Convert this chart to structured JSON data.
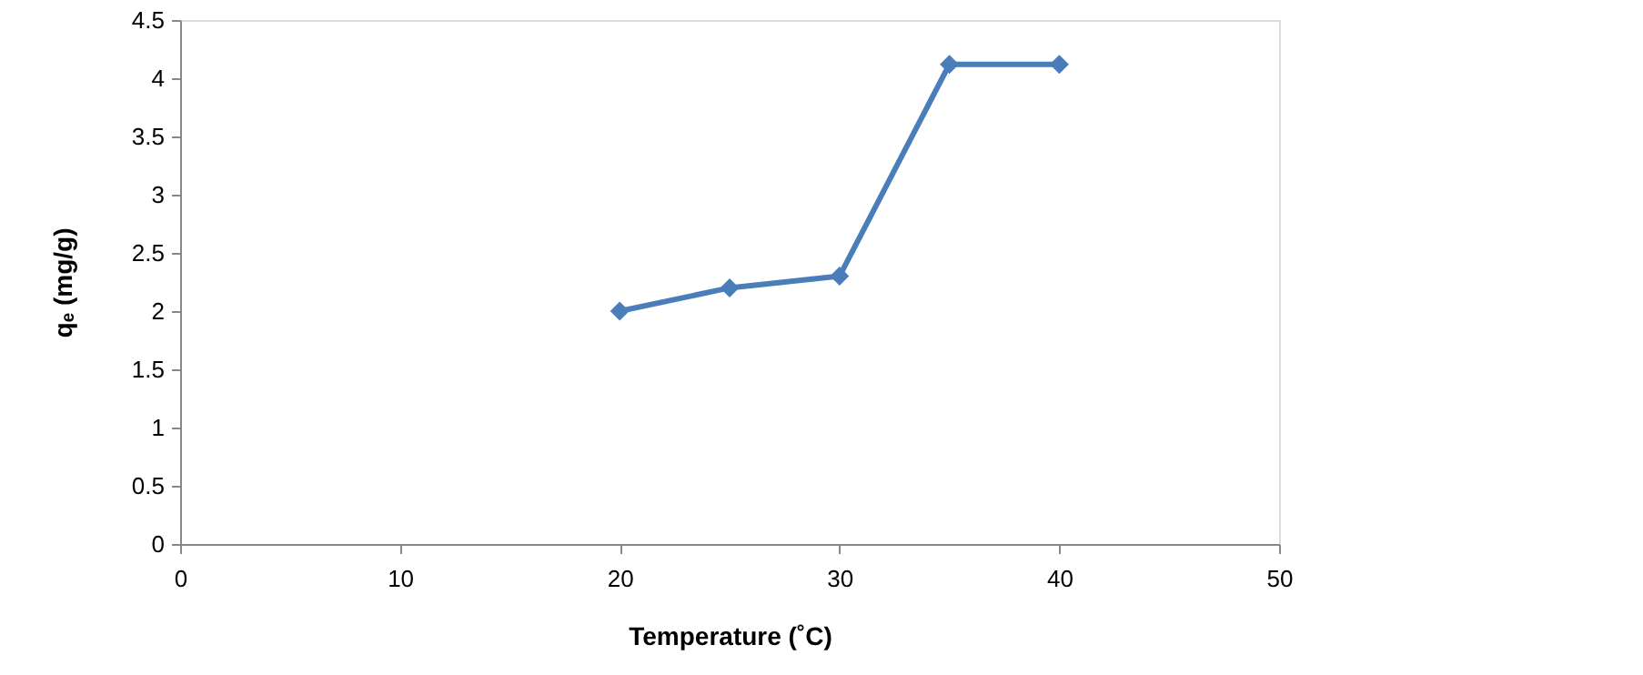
{
  "chart_data": {
    "type": "line",
    "xlabel": "Temperature (˚C)",
    "ylabel": "qₑ (mg/g)",
    "x": [
      20,
      25,
      30,
      35,
      40
    ],
    "series": [
      {
        "color": "#4a7ebb",
        "values": [
          2.0,
          2.2,
          2.3,
          4.12,
          4.12
        ]
      }
    ],
    "xlim": [
      0,
      50
    ],
    "xticks": [
      0,
      10,
      20,
      30,
      40,
      50
    ],
    "ylim": [
      0,
      4.5
    ],
    "yticks": [
      0,
      0.5,
      1,
      1.5,
      2,
      2.5,
      3,
      3.5,
      4,
      4.5
    ],
    "marker": "diamond",
    "line_style": "solid",
    "grid": false
  }
}
